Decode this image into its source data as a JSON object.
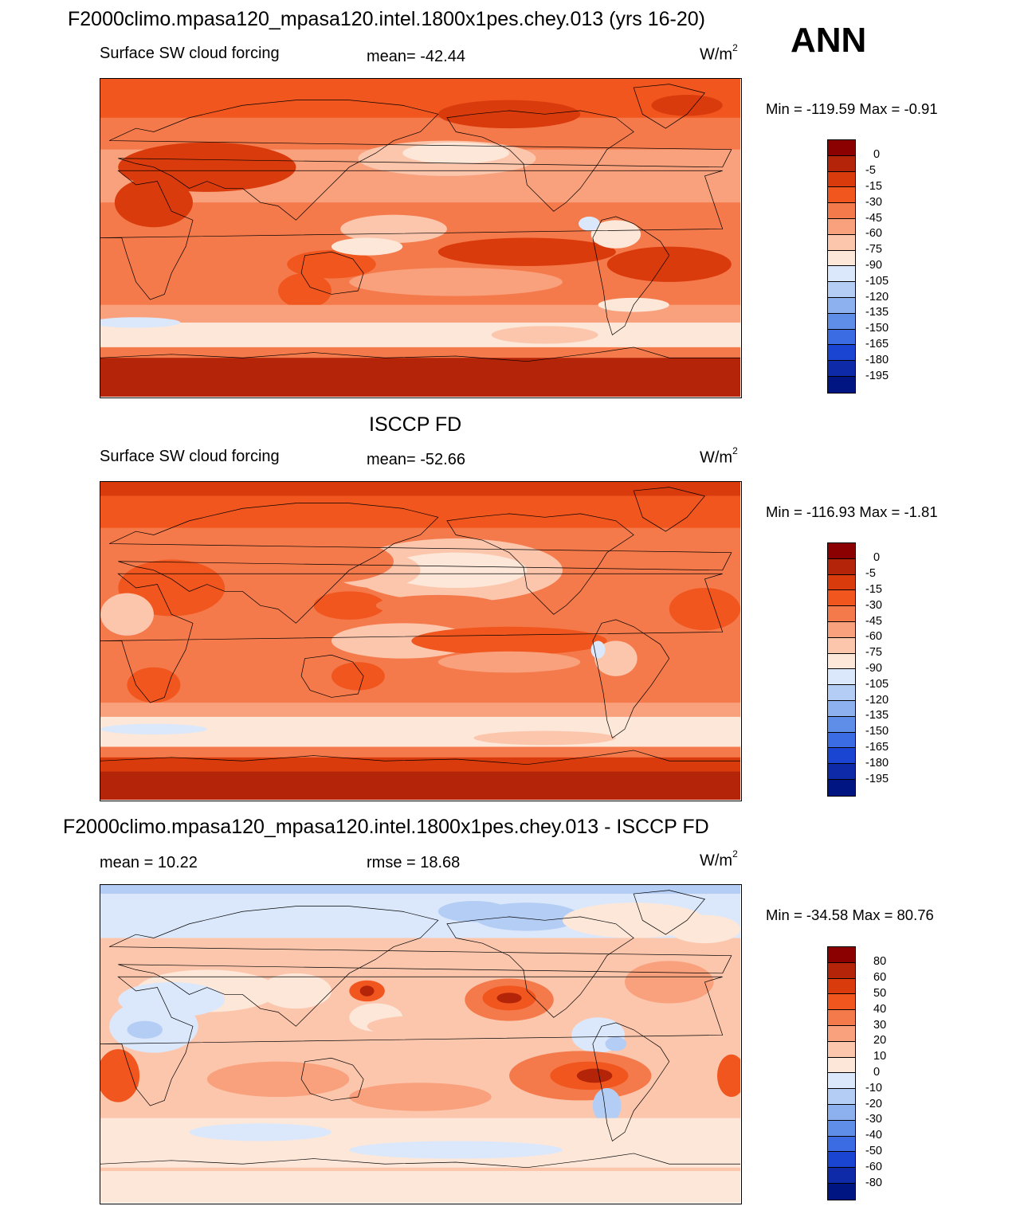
{
  "header": {
    "title": "F2000climo.mpasa120_mpasa120.intel.1800x1pes.chey.013 (yrs 16-20)",
    "season": "ANN"
  },
  "colors": {
    "ocean_top": "#e9531e",
    "ocean_mid": "#f58a5f",
    "ocean_light": "#fbc7ad",
    "cream": "#fde8d8",
    "pale_blue": "#d8e8fb",
    "antarctic_dark": "#c22a0a",
    "coast": "#000000"
  },
  "chart_data": [
    {
      "type": "heatmap",
      "id": "model",
      "title": "",
      "field": "Surface SW cloud forcing",
      "mean_text": "mean= -42.44",
      "units": "W/m",
      "units_sup": "2",
      "minmax_text": "Min = -119.59 Max =  -0.91",
      "colorbar": {
        "labels": [
          "0",
          "-5",
          "-15",
          "-30",
          "-45",
          "-60",
          "-75",
          "-90",
          "-105",
          "-120",
          "-135",
          "-150",
          "-165",
          "-180",
          "-195"
        ],
        "colors": [
          "#8b0000",
          "#b32408",
          "#d93b0c",
          "#f0561e",
          "#f57a4b",
          "#f9a07c",
          "#fcc6ad",
          "#fde7d8",
          "#dbe8fb",
          "#b4cdf5",
          "#8cb1ee",
          "#5f8ee8",
          "#3b6ce4",
          "#1a45d2",
          "#0f2aa8",
          "#001482"
        ]
      },
      "value_range": [
        -119.59,
        -0.91
      ],
      "mean": -42.44
    },
    {
      "type": "heatmap",
      "id": "obs",
      "title": "ISCCP FD",
      "field": "Surface SW cloud forcing",
      "mean_text": "mean= -52.66",
      "units": "W/m",
      "units_sup": "2",
      "minmax_text": "Min = -116.93 Max =  -1.81",
      "colorbar": {
        "labels": [
          "0",
          "-5",
          "-15",
          "-30",
          "-45",
          "-60",
          "-75",
          "-90",
          "-105",
          "-120",
          "-135",
          "-150",
          "-165",
          "-180",
          "-195"
        ],
        "colors": [
          "#8b0000",
          "#b32408",
          "#d93b0c",
          "#f0561e",
          "#f57a4b",
          "#f9a07c",
          "#fcc6ad",
          "#fde7d8",
          "#dbe8fb",
          "#b4cdf5",
          "#8cb1ee",
          "#5f8ee8",
          "#3b6ce4",
          "#1a45d2",
          "#0f2aa8",
          "#001482"
        ]
      },
      "value_range": [
        -116.93,
        -1.81
      ],
      "mean": -52.66
    },
    {
      "type": "heatmap",
      "id": "diff",
      "title": "F2000climo.mpasa120_mpasa120.intel.1800x1pes.chey.013 - ISCCP FD",
      "mean_text": "mean =  10.22",
      "rmse_text": "rmse =  18.68",
      "units": "W/m",
      "units_sup": "2",
      "minmax_text": "Min = -34.58 Max =  80.76",
      "colorbar": {
        "labels": [
          "80",
          "60",
          "50",
          "40",
          "30",
          "20",
          "10",
          "0",
          "-10",
          "-20",
          "-30",
          "-40",
          "-50",
          "-60",
          "-80"
        ],
        "colors": [
          "#8b0000",
          "#b32408",
          "#d93b0c",
          "#f0561e",
          "#f57a4b",
          "#f9a07c",
          "#fcc6ad",
          "#fde7d8",
          "#dbe8fb",
          "#b4cdf5",
          "#8cb1ee",
          "#5f8ee8",
          "#3b6ce4",
          "#1a45d2",
          "#0f2aa8",
          "#001482"
        ]
      },
      "value_range": [
        -34.58,
        80.76
      ],
      "mean": 10.22,
      "rmse": 18.68
    }
  ]
}
